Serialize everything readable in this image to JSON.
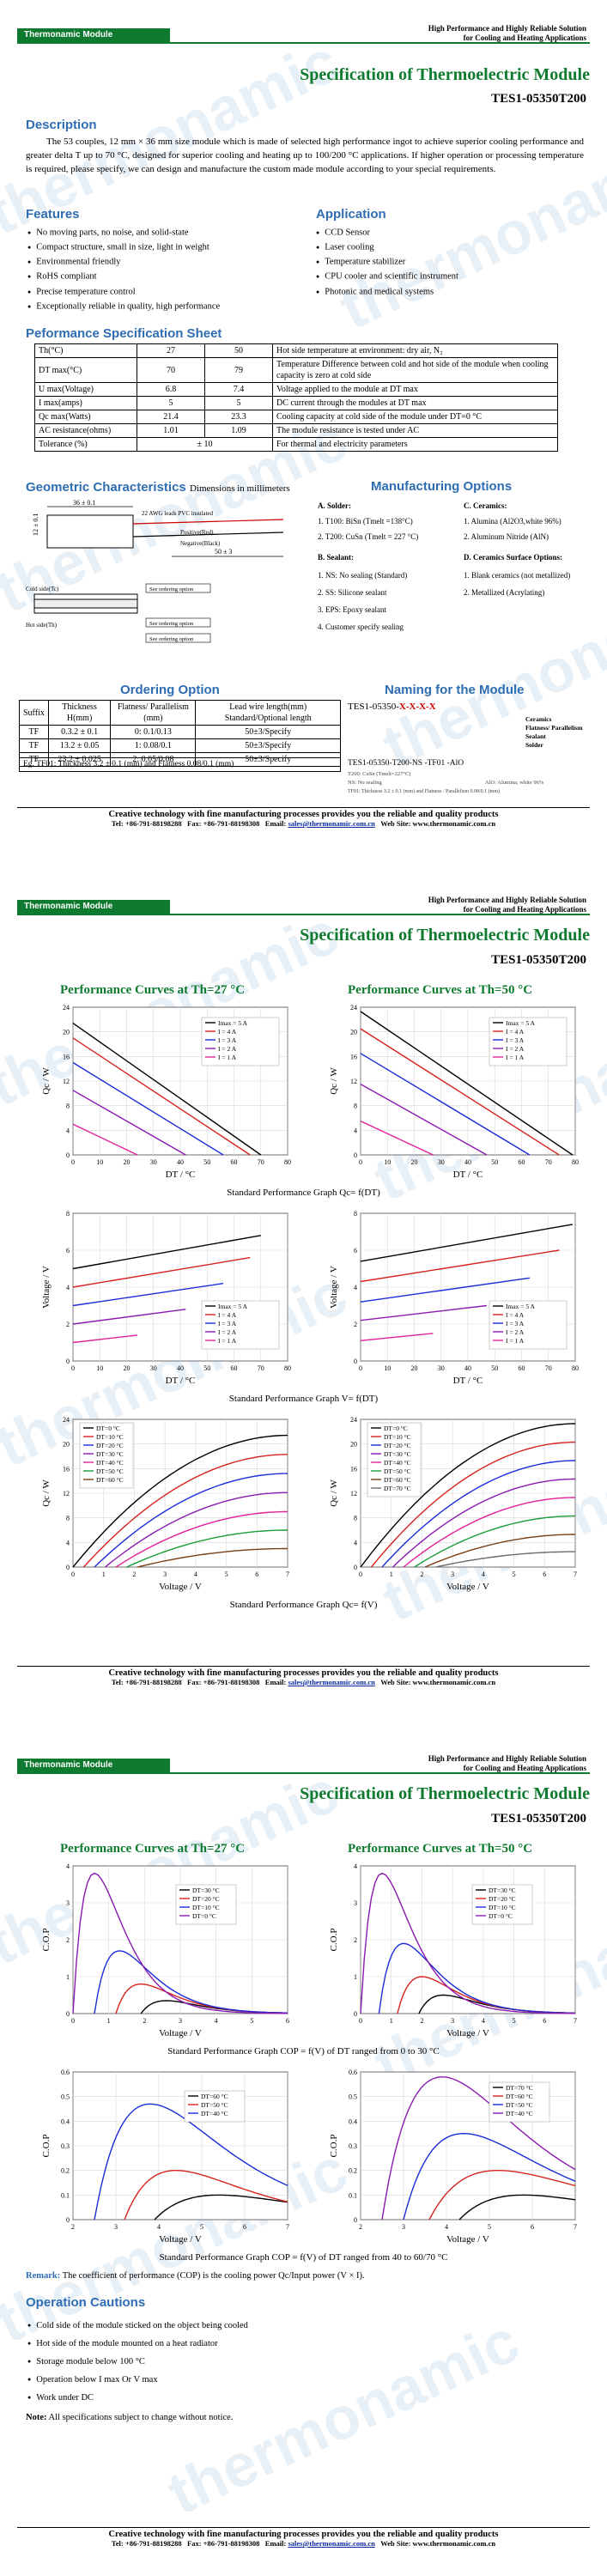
{
  "header": {
    "brand": "Thermonamic Module",
    "tagline1": "High Performance and Highly Reliable Solution",
    "tagline2": "for Cooling and Heating Applications",
    "title": "Specification of Thermoelectric Module",
    "model": "TES1-05350T200"
  },
  "watermark": "thermonamic",
  "description": {
    "heading": "Description",
    "text": "The 53 couples, 12 mm × 36 mm size module which is made of selected high performance ingot to achieve superior cooling performance and greater delta T up to 70 °C, designed for superior cooling and heating up to 100/200 °C applications. If higher operation or processing temperature is required, please specify, we can design and manufacture the custom made module according to your special requirements."
  },
  "features": {
    "heading": "Features",
    "items": [
      "No moving parts, no noise, and solid-state",
      "Compact structure, small in size, light in weight",
      "Environmental friendly",
      "RoHS compliant",
      "Precise temperature control",
      "Exceptionally reliable in quality, high performance"
    ]
  },
  "application": {
    "heading": "Application",
    "items": [
      "CCD Sensor",
      "Laser cooling",
      "Temperature stabilizer",
      "CPU cooler and scientific instrument",
      "Photonic and medical systems"
    ]
  },
  "perf_sheet": {
    "heading": "Peformance Specification Sheet",
    "rows": [
      [
        "Th(°C)",
        "27",
        "50",
        "Hot side temperature at environment: dry air, N₂"
      ],
      [
        "DT max(°C)",
        "70",
        "79",
        "Temperature Difference between cold and hot side of the module when cooling capacity is zero at cold side"
      ],
      [
        "U max(Voltage)",
        "6.8",
        "7.4",
        "Voltage applied to the module at DT max"
      ],
      [
        "I max(amps)",
        "5",
        "5",
        "DC current through the modules at DT max"
      ],
      [
        "Qc max(Watts)",
        "21.4",
        "23.3",
        "Cooling capacity at cold side of the module under DT=0 °C"
      ],
      [
        "AC resistance(ohms)",
        "1.01",
        "1.09",
        "The module resistance is tested under AC"
      ],
      [
        "Tolerance (%)",
        "± 10",
        "",
        "For thermal and electricity parameters"
      ]
    ]
  },
  "geometry": {
    "heading": "Geometric Characteristics",
    "sub": "Dimensions in millimeters",
    "dim_w": "36 ± 0.1",
    "dim_h": "12 ± 0.1",
    "dim_lead": "50 ± 3",
    "lead_note": "22 AWG leads PVC insulated",
    "pos": "Positive(Red)",
    "neg": "Negative(Black)",
    "cold": "Cold side(Tc)",
    "hot": "Hot side(Th)",
    "see": "See ordering option"
  },
  "manufacturing": {
    "heading": "Manufacturing Options",
    "a_title": "A. Solder:",
    "a_items": [
      "1. T100: BiSn (Tmelt =138°C)",
      "2. T200: CuSn (Tmelt = 227 °C)"
    ],
    "b_title": "B. Sealant:",
    "b_items": [
      "1. NS: No sealing (Standard)",
      "2. SS: Silicone sealant",
      "3. EPS: Epoxy sealant",
      "4. Customer specify sealing"
    ],
    "c_title": "C. Ceramics:",
    "c_items": [
      "1. Alumina (Al2O3,white 96%)",
      "2. Aluminum Nitride (AlN)"
    ],
    "d_title": "D. Ceramics Surface Options:",
    "d_items": [
      "1. Blank ceramics (not metallized)",
      "2. Metallized (Acrylating)"
    ]
  },
  "ordering": {
    "heading": "Ordering Option",
    "headers": [
      "Suffix",
      "Thickness H(mm)",
      "Flatness/ Parallelism (mm)",
      "Lead wire length(mm) Standard/Optional length"
    ],
    "rows": [
      [
        "TF",
        "0.3.2 ± 0.1",
        "0: 0.1/0.13",
        "50±3/Specify"
      ],
      [
        "TF",
        "13.2 ± 0.05",
        "1: 0.08/0.1",
        "50±3/Specify"
      ],
      [
        "TF",
        "23.2 ± 0.025",
        "2: 0.05/0.08",
        "50±3/Specify"
      ]
    ],
    "example": "Eg. TF01: Thickness 3.2 ± 0.1 (mm) and Flatness 0.08/0.1 (mm)"
  },
  "naming": {
    "heading": "Naming for the Module",
    "pattern": "TES1-05350-",
    "xs": "X-X-X-X",
    "labels": [
      "Ceramics",
      "Flatness/ Parallelism",
      "Sealant",
      "Solder"
    ],
    "example": "TES1-05350-T200-NS -TF01 -AlO",
    "ex1": "T200: CuSn (Tmelt=227°C)",
    "ex2": "NS: No sealing",
    "ex3": "AlO: Alumina, white 96%",
    "ex4": "TF01: Thickness 3.2 ± 0.1 (mm) and Flatness / Parallelism 0.08/0.1 (mm)"
  },
  "footer": {
    "line1": "Creative technology with fine manufacturing processes provides you the reliable and quality products",
    "tel": "Tel: +86-791-88198288",
    "fax": "Fax: +86-791-88198308",
    "email_label": "Email:",
    "email": "sales@thermonamic.com.cn",
    "web": "Web Site: www.thermonamic.com.cn"
  },
  "page2": {
    "title27": "Performance Curves at Th=27 °C",
    "title50": "Performance Curves at Th=50 °C",
    "cap1": "Standard Performance Graph Qc= f(DT)",
    "cap2": "Standard Performance Graph V= f(DT)",
    "cap3": "Standard Performance Graph Qc= f(V)"
  },
  "page3": {
    "title27": "Performance Curves at Th=27 °C",
    "title50": "Performance Curves at Th=50 °C",
    "cap1": "Standard Performance Graph COP = f(V) of DT ranged from 0 to 30 °C",
    "cap2": "Standard Performance Graph COP = f(V) of DT ranged from 40 to 60/70 °C",
    "remark_label": "Remark:",
    "remark": "The coefficient of performance (COP) is the cooling power Qc/Input power (V × I).",
    "cautions_heading": "Operation Cautions",
    "cautions": [
      "Cold side of the module sticked on the object being cooled",
      "Hot side of the module mounted on a heat radiator",
      "Storage module below 100 °C",
      "Operation below I max Or V max",
      "Work under DC"
    ],
    "note_label": "Note:",
    "note": "All specifications subject to change without notice."
  },
  "chart_data": [
    {
      "type": "line",
      "title": "Qc = f(DT) at Th=27 °C",
      "xlabel": "DT / °C",
      "ylabel": "Qc / W",
      "xlim": [
        0,
        80
      ],
      "ylim": [
        0,
        24
      ],
      "series": [
        {
          "name": "Imax = 5 A",
          "x": [
            0,
            70
          ],
          "y": [
            21.4,
            0
          ]
        },
        {
          "name": "I = 4 A",
          "x": [
            0,
            66
          ],
          "y": [
            19,
            0
          ]
        },
        {
          "name": "I = 3 A",
          "x": [
            0,
            56
          ],
          "y": [
            15,
            0
          ]
        },
        {
          "name": "I = 2 A",
          "x": [
            0,
            42
          ],
          "y": [
            10.5,
            0
          ]
        },
        {
          "name": "I = 1 A",
          "x": [
            0,
            24
          ],
          "y": [
            5,
            0
          ]
        }
      ]
    },
    {
      "type": "line",
      "title": "Qc = f(DT) at Th=50 °C",
      "xlabel": "DT / °C",
      "ylabel": "Qc / W",
      "xlim": [
        0,
        80
      ],
      "ylim": [
        0,
        24
      ],
      "series": [
        {
          "name": "Imax = 5 A",
          "x": [
            0,
            79
          ],
          "y": [
            23.3,
            0
          ]
        },
        {
          "name": "I = 4 A",
          "x": [
            0,
            74
          ],
          "y": [
            20.5,
            0
          ]
        },
        {
          "name": "I = 3 A",
          "x": [
            0,
            63
          ],
          "y": [
            16.5,
            0
          ]
        },
        {
          "name": "I = 2 A",
          "x": [
            0,
            47
          ],
          "y": [
            11.5,
            0
          ]
        },
        {
          "name": "I = 1 A",
          "x": [
            0,
            27
          ],
          "y": [
            5.5,
            0
          ]
        }
      ]
    },
    {
      "type": "line",
      "title": "V = f(DT) at Th=27 °C",
      "xlabel": "DT / °C",
      "ylabel": "Voltage / V",
      "xlim": [
        0,
        80
      ],
      "ylim": [
        0,
        8
      ],
      "series": [
        {
          "name": "Imax = 5 A",
          "x": [
            0,
            70
          ],
          "y": [
            5.0,
            6.8
          ]
        },
        {
          "name": "I = 4 A",
          "x": [
            0,
            66
          ],
          "y": [
            4.0,
            5.6
          ]
        },
        {
          "name": "I = 3 A",
          "x": [
            0,
            56
          ],
          "y": [
            3.0,
            4.2
          ]
        },
        {
          "name": "I = 2 A",
          "x": [
            0,
            42
          ],
          "y": [
            2.0,
            2.8
          ]
        },
        {
          "name": "I = 1 A",
          "x": [
            0,
            24
          ],
          "y": [
            1.0,
            1.4
          ]
        }
      ]
    },
    {
      "type": "line",
      "title": "V = f(DT) at Th=50 °C",
      "xlabel": "DT / °C",
      "ylabel": "Voltage / V",
      "xlim": [
        0,
        80
      ],
      "ylim": [
        0,
        8
      ],
      "series": [
        {
          "name": "Imax = 5 A",
          "x": [
            0,
            79
          ],
          "y": [
            5.4,
            7.4
          ]
        },
        {
          "name": "I = 4 A",
          "x": [
            0,
            74
          ],
          "y": [
            4.3,
            6.0
          ]
        },
        {
          "name": "I = 3 A",
          "x": [
            0,
            63
          ],
          "y": [
            3.2,
            4.5
          ]
        },
        {
          "name": "I = 2 A",
          "x": [
            0,
            47
          ],
          "y": [
            2.2,
            3.0
          ]
        },
        {
          "name": "I = 1 A",
          "x": [
            0,
            27
          ],
          "y": [
            1.1,
            1.5
          ]
        }
      ]
    },
    {
      "type": "line",
      "title": "Qc = f(V) at Th=27 °C",
      "xlabel": "Voltage / V",
      "ylabel": "Qc / W",
      "xlim": [
        0,
        7
      ],
      "ylim": [
        0,
        24
      ],
      "series": [
        {
          "name": "DT=0 °C",
          "peak": 21.4,
          "v0": 0
        },
        {
          "name": "DT=10 °C",
          "peak": 18.3,
          "v0": 0.35
        },
        {
          "name": "DT=20 °C",
          "peak": 15.2,
          "v0": 0.7
        },
        {
          "name": "DT=30 °C",
          "peak": 12.1,
          "v0": 1.05
        },
        {
          "name": "DT=40 °C",
          "peak": 9.0,
          "v0": 1.4
        },
        {
          "name": "DT=50 °C",
          "peak": 6.0,
          "v0": 1.75
        },
        {
          "name": "DT=60 °C",
          "peak": 3.0,
          "v0": 2.1
        }
      ]
    },
    {
      "type": "line",
      "title": "Qc = f(V) at Th=50 °C",
      "xlabel": "Voltage / V",
      "ylabel": "Qc / W",
      "xlim": [
        0,
        7
      ],
      "ylim": [
        0,
        24
      ],
      "series": [
        {
          "name": "DT=0 °C",
          "peak": 23.3,
          "v0": 0
        },
        {
          "name": "DT=10 °C",
          "peak": 20.3,
          "v0": 0.35
        },
        {
          "name": "DT=20 °C",
          "peak": 17.3,
          "v0": 0.7
        },
        {
          "name": "DT=30 °C",
          "peak": 14.3,
          "v0": 1.05
        },
        {
          "name": "DT=40 °C",
          "peak": 11.3,
          "v0": 1.4
        },
        {
          "name": "DT=50 °C",
          "peak": 8.3,
          "v0": 1.75
        },
        {
          "name": "DT=60 °C",
          "peak": 5.3,
          "v0": 2.1
        },
        {
          "name": "DT=70 °C",
          "peak": 2.5,
          "v0": 2.45
        }
      ]
    },
    {
      "type": "line",
      "title": "COP = f(V) DT 0-30 °C at Th=27 °C",
      "xlabel": "Voltage / V",
      "ylabel": "C.O.P",
      "xlim": [
        0,
        6
      ],
      "ylim": [
        0,
        4
      ],
      "series": [
        {
          "name": "DT=30 °C",
          "peak": 0.35,
          "vpk": 2.6,
          "v0": 1.9
        },
        {
          "name": "DT=20 °C",
          "peak": 0.8,
          "vpk": 1.9,
          "v0": 1.2
        },
        {
          "name": "DT=10 °C",
          "peak": 1.7,
          "vpk": 1.3,
          "v0": 0.6
        },
        {
          "name": "DT=0 °C",
          "peak": 3.8,
          "vpk": 0.6,
          "v0": 0
        }
      ]
    },
    {
      "type": "line",
      "title": "COP = f(V) DT 0-30 °C at Th=50 °C",
      "xlabel": "Voltage / V",
      "ylabel": "C.O.P",
      "xlim": [
        0,
        7
      ],
      "ylim": [
        0,
        4
      ],
      "series": [
        {
          "name": "DT=30 °C",
          "peak": 0.5,
          "vpk": 2.7,
          "v0": 1.9
        },
        {
          "name": "DT=20 °C",
          "peak": 1.0,
          "vpk": 2.0,
          "v0": 1.2
        },
        {
          "name": "DT=10 °C",
          "peak": 1.9,
          "vpk": 1.4,
          "v0": 0.6
        },
        {
          "name": "DT=0 °C",
          "peak": 3.8,
          "vpk": 0.7,
          "v0": 0
        }
      ]
    },
    {
      "type": "line",
      "title": "COP = f(V) DT 40-60 °C at Th=27 °C",
      "xlabel": "Voltage / V",
      "ylabel": "C.O.P",
      "xlim": [
        2,
        7
      ],
      "ylim": [
        0,
        0.6
      ],
      "series": [
        {
          "name": "DT=60 °C",
          "peak": 0.1,
          "vpk": 5.4,
          "v0": 3.9
        },
        {
          "name": "DT=50 °C",
          "peak": 0.2,
          "vpk": 4.4,
          "v0": 3.2
        },
        {
          "name": "DT=40 °C",
          "peak": 0.47,
          "vpk": 3.8,
          "v0": 2.5
        }
      ]
    },
    {
      "type": "line",
      "title": "COP = f(V) DT 40-70 °C at Th=50 °C",
      "xlabel": "Voltage / V",
      "ylabel": "C.O.P",
      "xlim": [
        2,
        7
      ],
      "ylim": [
        0,
        0.6
      ],
      "series": [
        {
          "name": "DT=70 °C",
          "peak": 0.1,
          "vpk": 5.8,
          "v0": 4.3
        },
        {
          "name": "DT=60 °C",
          "peak": 0.2,
          "vpk": 5.2,
          "v0": 3.6
        },
        {
          "name": "DT=50 °C",
          "peak": 0.35,
          "vpk": 4.4,
          "v0": 3.0
        },
        {
          "name": "DT=40 °C",
          "peak": 0.58,
          "vpk": 3.9,
          "v0": 2.5
        }
      ]
    }
  ]
}
